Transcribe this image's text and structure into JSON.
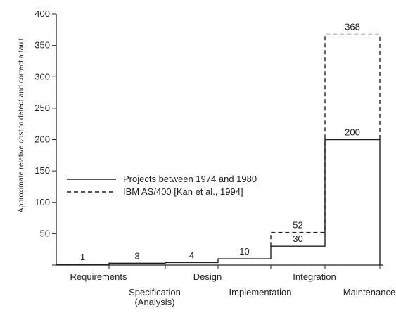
{
  "chart_data": {
    "type": "line",
    "ylabel": "Approximate relative cost to detect and correct a fault",
    "ylim": [
      0,
      400
    ],
    "y_ticks": [
      0,
      50,
      100,
      150,
      200,
      250,
      300,
      350,
      400
    ],
    "y_tick_labels": [
      "50",
      "100",
      "150",
      "200",
      "250",
      "300",
      "350",
      "400"
    ],
    "categories": [
      [
        "Requirements"
      ],
      [
        "Specification",
        "(Analysis)"
      ],
      [
        "Design"
      ],
      [
        "Implementation"
      ],
      [
        "Integration"
      ],
      [
        "Maintenance"
      ]
    ],
    "series": [
      {
        "name": "Projects between 1974 and 1980",
        "style": "solid",
        "values": [
          1,
          3,
          4,
          10,
          30,
          200
        ],
        "labels": [
          "1",
          "3",
          "4",
          "10",
          "30",
          "200"
        ]
      },
      {
        "name": "IBM AS/400 [Kan et al., 1994]",
        "style": "dashed",
        "values": [
          null,
          null,
          null,
          null,
          52,
          368
        ],
        "labels": [
          "",
          "",
          "",
          "",
          "52",
          "368"
        ]
      }
    ],
    "legend": {
      "position": "center-left",
      "entries": [
        "Projects between 1974 and 1980",
        "IBM AS/400 [Kan et al., 1994]"
      ]
    },
    "grid": false,
    "line_color": "#222222",
    "background": "#ffffff"
  }
}
